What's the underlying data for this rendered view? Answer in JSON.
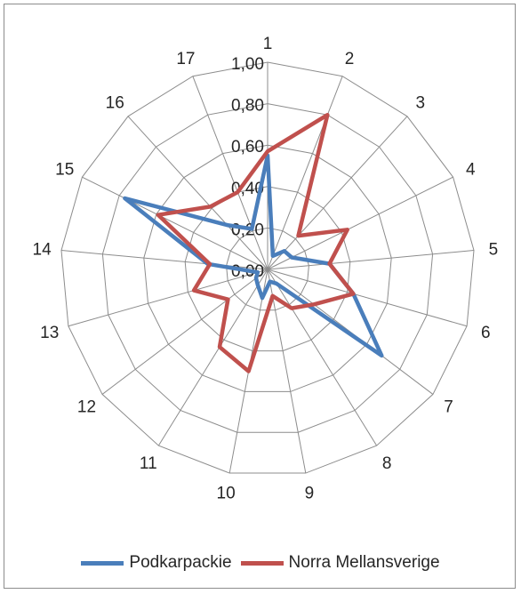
{
  "chart_data": {
    "type": "radar",
    "categories": [
      "1",
      "2",
      "3",
      "4",
      "5",
      "6",
      "7",
      "8",
      "9",
      "10",
      "11",
      "12",
      "13",
      "14",
      "15",
      "16",
      "17"
    ],
    "ticks": [
      "0,00",
      "0,20",
      "0,40",
      "0,60",
      "0,80",
      "1,00"
    ],
    "rlim": [
      0,
      1
    ],
    "grid": true,
    "legend": "bottom",
    "series": [
      {
        "name": "Podkarpackie",
        "color": "#4a7ebb",
        "values": [
          0.55,
          0.07,
          0.12,
          0.13,
          0.3,
          0.43,
          0.69,
          0.08,
          0.06,
          0.14,
          0.09,
          0.07,
          0.05,
          0.29,
          0.77,
          0.29,
          0.21
        ]
      },
      {
        "name": "Norra Mellansverige",
        "color": "#c0504d",
        "values": [
          0.57,
          0.8,
          0.22,
          0.43,
          0.3,
          0.43,
          0.28,
          0.22,
          0.13,
          0.5,
          0.44,
          0.24,
          0.37,
          0.28,
          0.59,
          0.41,
          0.4
        ]
      }
    ]
  }
}
